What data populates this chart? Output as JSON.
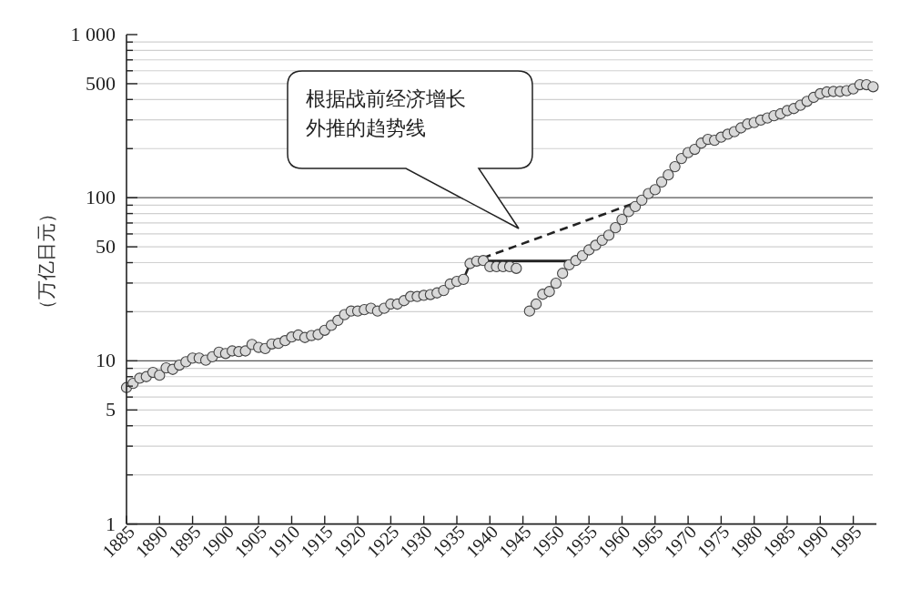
{
  "chart_data": {
    "type": "scatter",
    "ylabel": "（万亿日元）",
    "log": "y",
    "grid": "y",
    "marker": "circle",
    "xlim": [
      1885,
      1998.5
    ],
    "xticks": [
      1885,
      1890,
      1895,
      1900,
      1905,
      1910,
      1915,
      1920,
      1925,
      1930,
      1935,
      1940,
      1945,
      1950,
      1955,
      1960,
      1965,
      1970,
      1975,
      1980,
      1985,
      1990,
      1995
    ],
    "ylim": [
      1,
      1000
    ],
    "yticks": [
      1,
      {
        "value": 2,
        "label": null
      },
      {
        "value": 3,
        "label": null
      },
      {
        "value": 4,
        "label": null
      },
      5,
      {
        "value": 6,
        "label": null
      },
      {
        "value": 7,
        "label": null
      },
      {
        "value": 8,
        "label": null
      },
      {
        "value": 9,
        "label": null
      },
      10,
      {
        "value": 20,
        "label": null
      },
      {
        "value": 30,
        "label": null
      },
      {
        "value": 40,
        "label": null
      },
      50,
      {
        "value": 60,
        "label": null
      },
      {
        "value": 70,
        "label": null
      },
      {
        "value": 80,
        "label": null
      },
      {
        "value": 90,
        "label": null
      },
      100,
      {
        "value": 200,
        "label": null
      },
      {
        "value": 300,
        "label": null
      },
      {
        "value": 400,
        "label": null
      },
      500,
      {
        "value": 600,
        "label": null
      },
      {
        "value": 700,
        "label": null
      },
      {
        "value": 800,
        "label": null
      },
      {
        "value": 900,
        "label": null
      },
      {
        "value": 1000,
        "label": "1 000"
      }
    ],
    "series": [
      {
        "type": "line",
        "color": "#222222",
        "line_style": "solid",
        "marker": "none",
        "x": [
          1936,
          1937
        ],
        "values": [
          31.6,
          39.5
        ]
      },
      {
        "type": "line",
        "color": "#222222",
        "line_style": "dashed",
        "marker": "none",
        "x": [
          1937,
          1962
        ],
        "values": [
          40,
          93
        ]
      },
      {
        "type": "line",
        "color": "#222222",
        "line_style": "solid",
        "marker": "none",
        "x": [
          1939,
          1952
        ],
        "values": [
          41,
          41
        ]
      },
      {
        "color": "#d9d9d9",
        "x": [
          1885,
          1886,
          1887,
          1888,
          1889,
          1890,
          1891,
          1892,
          1893,
          1894,
          1895,
          1896,
          1897,
          1898,
          1899,
          1900,
          1901,
          1902,
          1903,
          1904,
          1905,
          1906,
          1907,
          1908,
          1909,
          1910,
          1911,
          1912,
          1913,
          1914,
          1915,
          1916,
          1917,
          1918,
          1919,
          1920,
          1921,
          1922,
          1923,
          1924,
          1925,
          1926,
          1927,
          1928,
          1929,
          1930,
          1931,
          1932,
          1933,
          1934,
          1935,
          1936,
          1937,
          1938,
          1939,
          1940,
          1941,
          1942,
          1943,
          1944
        ],
        "values": [
          6.86,
          7.28,
          7.83,
          8.0,
          8.5,
          8.17,
          9.06,
          8.87,
          9.42,
          9.87,
          10.4,
          10.4,
          10.1,
          10.6,
          11.3,
          11.1,
          11.5,
          11.4,
          11.5,
          12.6,
          12.1,
          11.9,
          12.7,
          12.8,
          13.3,
          14.0,
          14.4,
          13.9,
          14.3,
          14.5,
          15.4,
          16.5,
          17.7,
          19.2,
          20.2,
          20.2,
          20.6,
          21.0,
          20.2,
          21.0,
          22.3,
          22.3,
          23.4,
          24.8,
          24.8,
          25.2,
          25.5,
          26.1,
          27.0,
          29.6,
          30.7,
          31.6,
          39.5,
          40.9,
          41.2,
          37.8,
          37.8,
          37.8,
          37.8,
          36.9
        ]
      },
      {
        "color": "#d9d9d9",
        "x": [
          1946,
          1947,
          1948,
          1949,
          1950,
          1951,
          1952,
          1953,
          1954,
          1955,
          1956,
          1957,
          1958,
          1959,
          1960,
          1961,
          1962,
          1963,
          1964,
          1965,
          1966,
          1967,
          1968,
          1969,
          1970,
          1971,
          1972,
          1973,
          1974,
          1975,
          1976,
          1977,
          1978,
          1979,
          1980,
          1981,
          1982,
          1983,
          1984,
          1985,
          1986,
          1987,
          1988,
          1989,
          1990,
          1991,
          1992,
          1993,
          1994,
          1995,
          1996,
          1997,
          1998
        ],
        "values": [
          20.2,
          22.3,
          25.6,
          26.6,
          29.9,
          34.4,
          38.8,
          41.2,
          44.1,
          47.9,
          51.1,
          54.9,
          58.9,
          65.5,
          73.5,
          82.2,
          88.3,
          96.6,
          106,
          112,
          125,
          138,
          155,
          174,
          189,
          198,
          216,
          228,
          225,
          235,
          245,
          254,
          268,
          283,
          289,
          299,
          308,
          318,
          327,
          342,
          352,
          369,
          390,
          412,
          434,
          445,
          448,
          448,
          453,
          465,
          493,
          493,
          479
        ]
      }
    ],
    "annotations": [
      "根据战前经济增长外推的趋势线"
    ]
  }
}
